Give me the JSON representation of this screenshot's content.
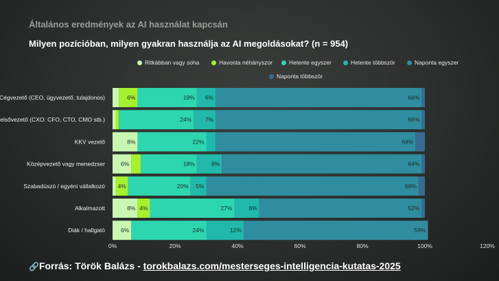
{
  "kicker": "Általános eredmények az AI használat kapcsán",
  "title": "Milyen pozícióban, milyen gyakran használja az AI megoldásokat? (n = 954)",
  "source": {
    "icon": "link-icon",
    "prefix": "Forrás: Török Balázs - ",
    "link": "torokbalazs.com/mesterseges-intelligencia-kutatas-2025"
  },
  "chart_data": {
    "type": "bar",
    "orientation": "horizontal",
    "stacked": true,
    "legend_position": "top",
    "categories": [
      "Cégvezető (CEO, ügyvezető, tulajdonos)",
      "Felsővezető (CXO: CFO, CTO, CMO stb.)",
      "KKV vezető",
      "Középvezető vagy menedzser",
      "Szabadúszó / egyéni vállalkozó",
      "Alkalmazott",
      "Diák / hallgató"
    ],
    "series": [
      {
        "name": "Ritkábban vagy soha",
        "color": "#c9f7b2",
        "values": [
          2,
          1,
          8,
          6,
          1,
          8,
          6
        ]
      },
      {
        "name": "Havonta néhányszor",
        "color": "#a6f030",
        "values": [
          6,
          1,
          0,
          3,
          4,
          4,
          0
        ]
      },
      {
        "name": "Hetente egyszer",
        "color": "#2ed6b0",
        "values": [
          19,
          24,
          22,
          18,
          20,
          27,
          24
        ]
      },
      {
        "name": "Hetente többször",
        "color": "#22b8ac",
        "values": [
          6,
          7,
          3,
          8,
          5,
          8,
          12
        ]
      },
      {
        "name": "Naponta egyszer",
        "color": "#2f8d9f",
        "values": [
          66,
          66,
          64,
          64,
          68,
          52,
          59
        ]
      },
      {
        "name": "Naponta többször",
        "color": "#3a6b8f",
        "values": [
          1,
          1,
          3,
          1,
          2,
          1,
          0
        ]
      }
    ],
    "labels": [
      [
        "",
        "6%",
        "19%",
        "6%",
        "66%",
        ""
      ],
      [
        "",
        "",
        "24%",
        "7%",
        "66%",
        ""
      ],
      [
        "8%",
        "",
        "22%",
        "",
        "64%",
        ""
      ],
      [
        "6%",
        "",
        "18%",
        "8%",
        "64%",
        ""
      ],
      [
        "",
        "4%",
        "20%",
        "5%",
        "68%",
        ""
      ],
      [
        "8%",
        "4%",
        "27%",
        "8%",
        "52%",
        ""
      ],
      [
        "6%",
        "",
        "24%",
        "12%",
        "59%",
        ""
      ]
    ],
    "xlim": [
      0,
      120
    ],
    "xticks": [
      "0%",
      "20%",
      "40%",
      "60%",
      "80%",
      "100%",
      "120%"
    ],
    "grid": false
  }
}
